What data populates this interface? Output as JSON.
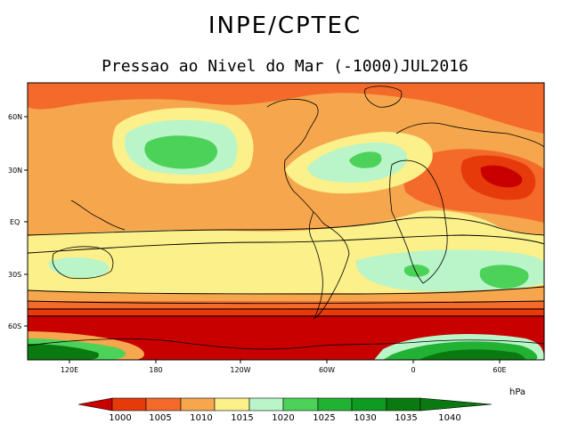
{
  "header": {
    "title": "INPE/CPTEC",
    "subtitle": "Pressao ao Nivel do Mar (-1000)JUL2016"
  },
  "map": {
    "projection": "cylindrical",
    "lat_labels": [
      "60N",
      "30N",
      "EQ",
      "30S",
      "60S"
    ],
    "lon_labels": [
      "120E",
      "180",
      "120W",
      "60W",
      "0",
      "60E"
    ]
  },
  "colorbar": {
    "unit": "hPa",
    "levels": [
      "1000",
      "1005",
      "1010",
      "1015",
      "1020",
      "1025",
      "1030",
      "1035",
      "1040"
    ],
    "colors": {
      "below_1000": "#c80000",
      "r1000_1005": "#e63a0a",
      "r1005_1010": "#f36a2a",
      "r1010_1015": "#f6a74d",
      "r1015_1020": "#fbf08a",
      "r1020_1025": "#b9f5c8",
      "r1025_1030": "#4cd259",
      "r1030_1035": "#22b233",
      "r1035_1040": "#0f9a22",
      "above_1040": "#0a7a10"
    }
  }
}
